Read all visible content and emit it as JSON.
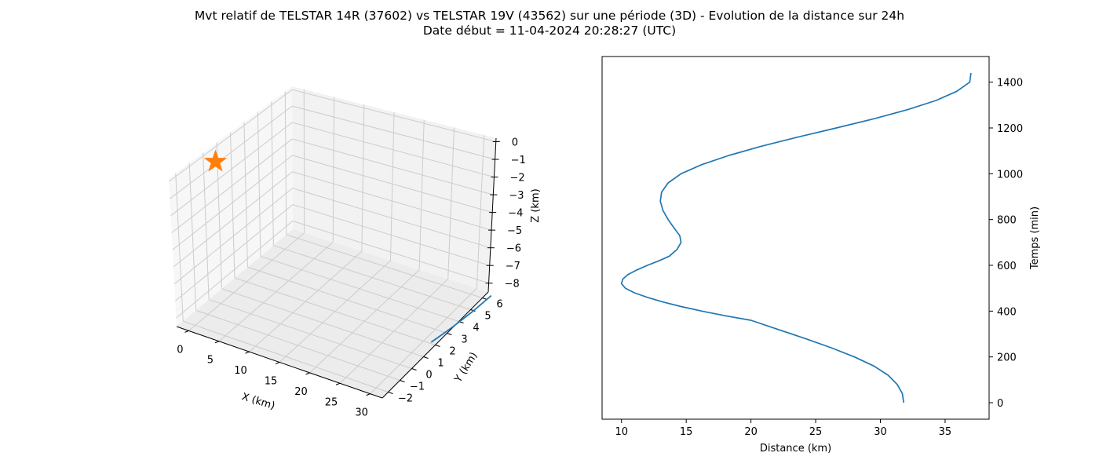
{
  "figure": {
    "title_line1": "Mvt relatif de TELSTAR 14R (37602) vs TELSTAR 19V (43562) sur une période (3D) - Evolution de la distance sur 24h",
    "title_line2": "Date début = 11-04-2024 20:28:27 (UTC)",
    "line_color": "#1f77b4",
    "marker_color": "#ff7f0e"
  },
  "chart_data": [
    {
      "type": "line",
      "projection": "3d",
      "xlabel": "X (km)",
      "ylabel": "Y (km)",
      "zlabel": "Z (km)",
      "xlim": [
        -2,
        32
      ],
      "ylim": [
        -2.5,
        6.5
      ],
      "zlim": [
        -8.5,
        0.2
      ],
      "xticks": [
        "0",
        "5",
        "10",
        "15",
        "20",
        "25",
        "30"
      ],
      "yticks": [
        "−2",
        "−1",
        "0",
        "1",
        "2",
        "3",
        "4",
        "5",
        "6"
      ],
      "zticks": [
        "0",
        "−1",
        "−2",
        "−3",
        "−4",
        "−5",
        "−6",
        "−7",
        "−8"
      ],
      "grid": true,
      "series": [
        {
          "kind": "line",
          "x": [
            31.5,
            31.9,
            32.3,
            32.6,
            32.9,
            33.1,
            33.3
          ],
          "y": [
            1.9,
            2.6,
            3.3,
            4.0,
            4.7,
            5.4,
            6.1
          ],
          "z": [
            -8.3,
            -8.3,
            -8.3,
            -8.3,
            -8.3,
            -8.3,
            -8.3
          ]
        },
        {
          "kind": "marker",
          "marker": "star",
          "x": [
            0
          ],
          "y": [
            0
          ],
          "z": [
            0
          ]
        }
      ]
    },
    {
      "type": "line",
      "xlabel": "Distance (km)",
      "ylabel": "Temps (min)",
      "xlim": [
        8.5,
        38.4
      ],
      "ylim": [
        -72,
        1512
      ],
      "xticks": [
        10,
        15,
        20,
        25,
        30,
        35
      ],
      "yticks": [
        0,
        200,
        400,
        600,
        800,
        1000,
        1200,
        1400
      ],
      "yaxis_position": "right",
      "grid": false,
      "series": [
        {
          "x": [
            31.8,
            31.7,
            31.3,
            30.6,
            29.5,
            28.0,
            26.2,
            24.2,
            22.1,
            20.0,
            18.0,
            16.2,
            14.6,
            13.2,
            12.0,
            11.0,
            10.3,
            10.0,
            10.1,
            10.5,
            11.2,
            12.0,
            12.9,
            13.7,
            14.3,
            14.6,
            14.5,
            14.1,
            13.6,
            13.2,
            13.0,
            13.1,
            13.6,
            14.6,
            16.2,
            18.3,
            20.8,
            23.6,
            26.6,
            29.5,
            32.1,
            34.3,
            35.9,
            36.9,
            37.0
          ],
          "y": [
            0,
            40,
            80,
            120,
            160,
            200,
            240,
            280,
            320,
            360,
            380,
            400,
            420,
            440,
            460,
            480,
            500,
            520,
            540,
            560,
            580,
            600,
            620,
            640,
            670,
            700,
            730,
            760,
            800,
            840,
            880,
            920,
            960,
            1000,
            1040,
            1080,
            1120,
            1160,
            1200,
            1240,
            1280,
            1320,
            1360,
            1400,
            1440
          ]
        }
      ]
    }
  ]
}
